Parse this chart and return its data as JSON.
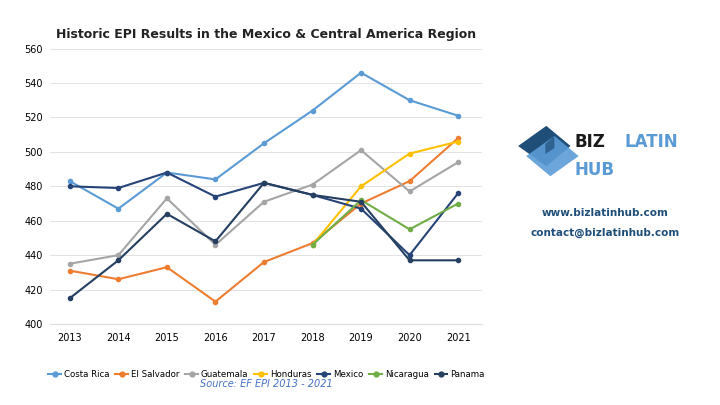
{
  "title": "Historic EPI Results in the Mexico & Central America Region",
  "years": [
    2013,
    2014,
    2015,
    2016,
    2017,
    2018,
    2019,
    2020,
    2021
  ],
  "series": {
    "Costa Rica": [
      483,
      467,
      488,
      484,
      505,
      524,
      546,
      530,
      521
    ],
    "El Salvador": [
      431,
      426,
      433,
      413,
      436,
      447,
      470,
      483,
      508
    ],
    "Guatemala": [
      435,
      440,
      473,
      446,
      471,
      481,
      501,
      477,
      494
    ],
    "Honduras": [
      null,
      null,
      null,
      null,
      null,
      446,
      480,
      499,
      506
    ],
    "Mexico": [
      480,
      479,
      488,
      474,
      482,
      475,
      467,
      440,
      476
    ],
    "Nicaragua": [
      null,
      null,
      null,
      null,
      null,
      446,
      472,
      455,
      470
    ],
    "Panama": [
      415,
      437,
      464,
      448,
      482,
      475,
      471,
      437,
      437
    ]
  },
  "colors": {
    "Costa Rica": "#5B9BD5",
    "El Salvador": "#ED7D31",
    "Guatemala": "#A5A5A5",
    "Honduras": "#FFC000",
    "Mexico": "#264478",
    "Nicaragua": "#70AD47",
    "Panama": "#243F60"
  },
  "ylim": [
    400,
    560
  ],
  "yticks": [
    400,
    420,
    440,
    460,
    480,
    500,
    520,
    540,
    560
  ],
  "source_text": "Source: EF EPI 2013 - 2021",
  "biz_text1": "www.bizlatinhub.com",
  "biz_text2": "contact@bizlatinhub.com",
  "logo_biz_color": "#1a1a1a",
  "logo_latin_hub_color": "#5B9BD5",
  "logo_dark_blue": "#1F4E79",
  "logo_light_blue": "#5B9BD5",
  "contact_color": "#1F4E79"
}
